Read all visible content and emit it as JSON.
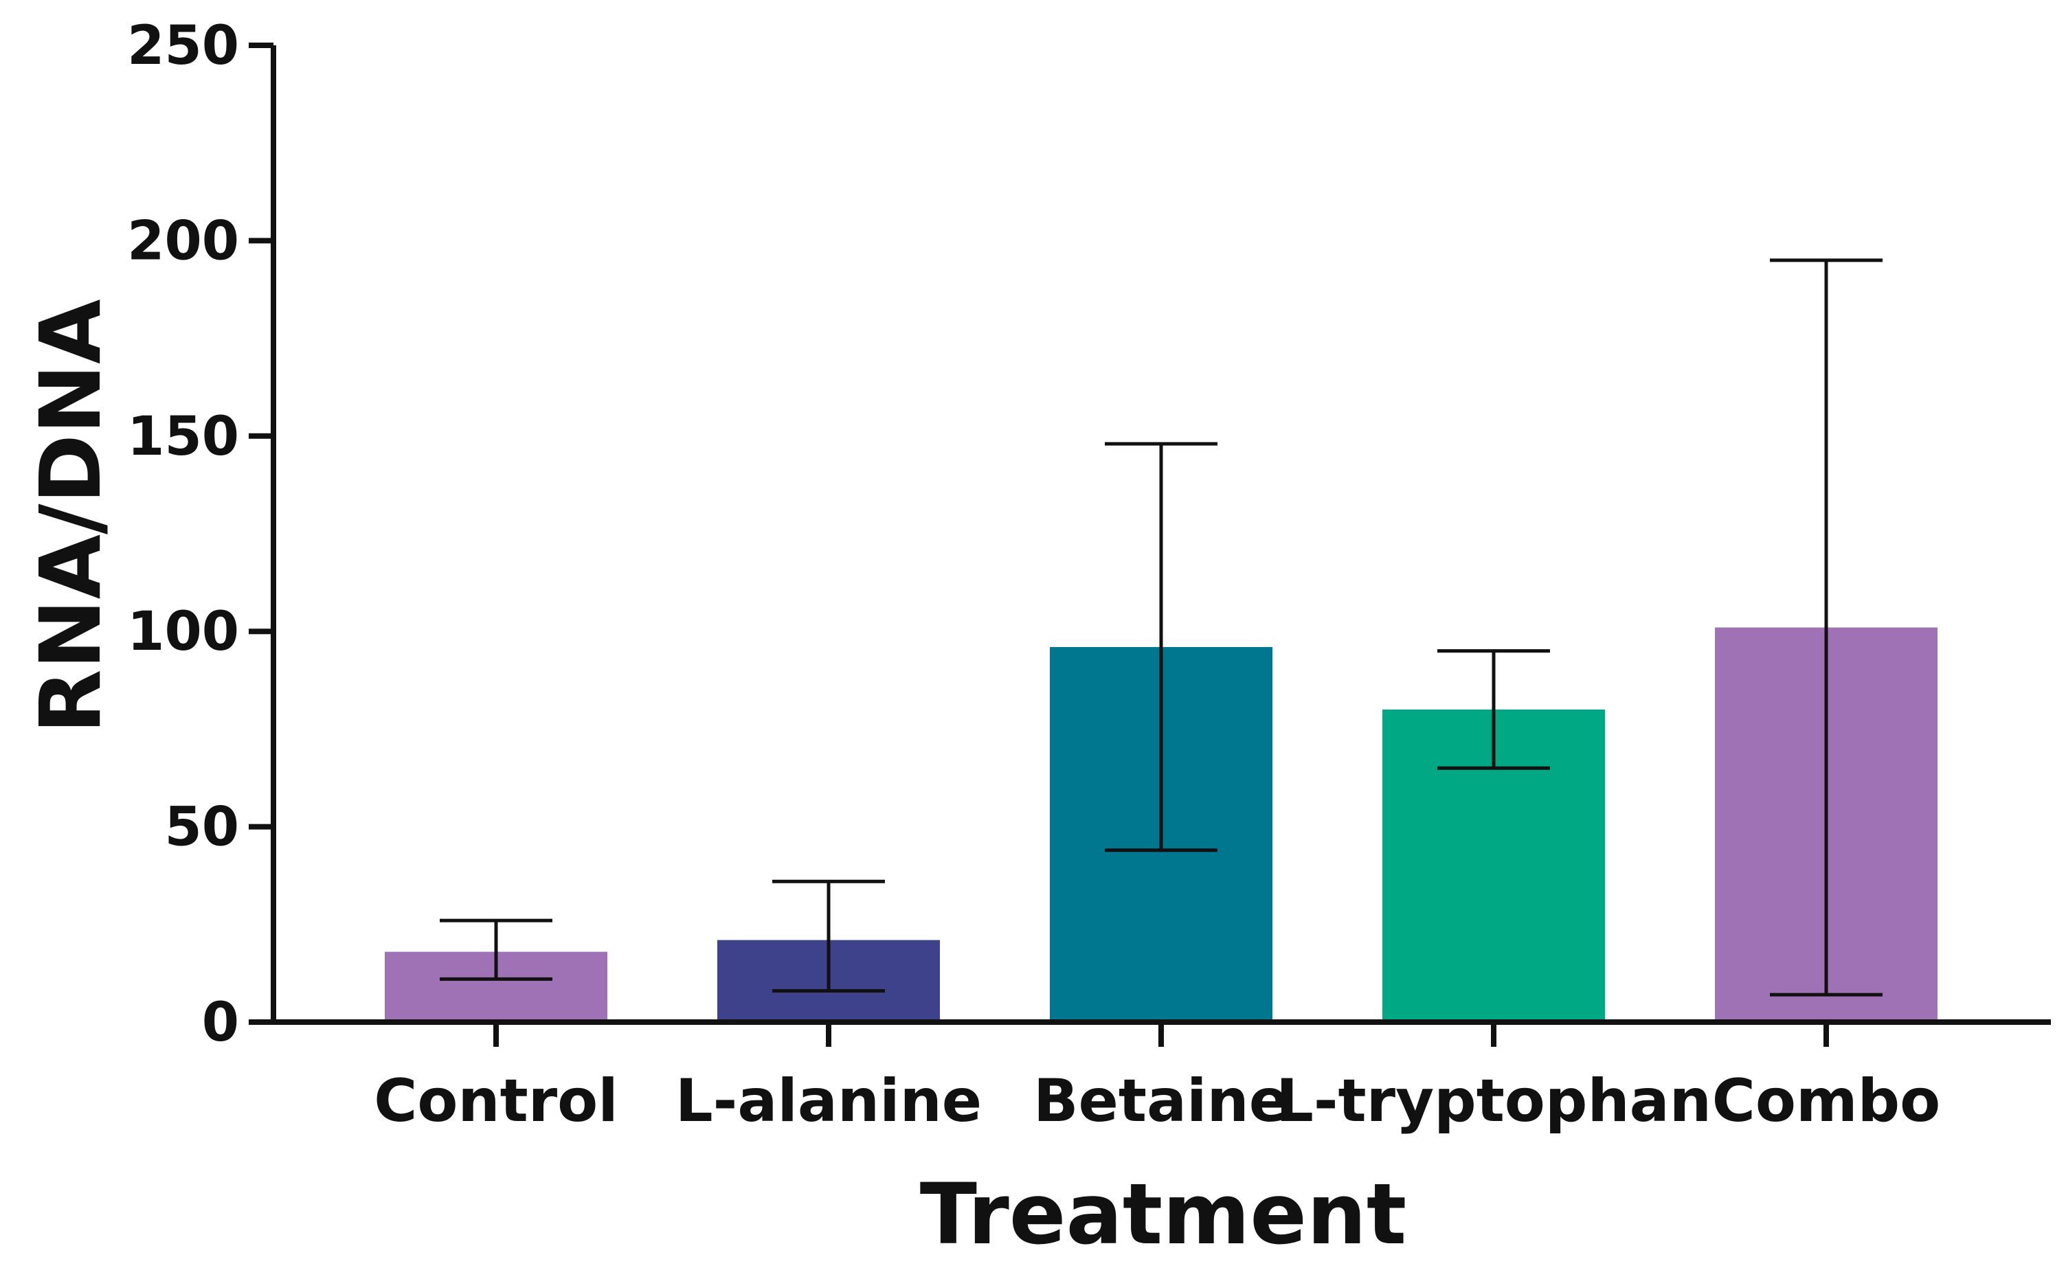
{
  "chart_data": {
    "type": "bar",
    "xlabel": "Treatment",
    "ylabel": "RNA/DNA",
    "ylim": [
      0,
      250
    ],
    "yticks": [
      0,
      50,
      100,
      150,
      200,
      250
    ],
    "categories": [
      "Control",
      "L-alanine",
      "Betaine",
      "L-tryptophan",
      "Combo"
    ],
    "values": [
      18,
      21,
      96,
      80,
      101
    ],
    "error_low": [
      11,
      8,
      44,
      65,
      7
    ],
    "error_high": [
      26,
      36,
      148,
      95,
      195
    ],
    "colors": [
      "#9E72B4",
      "#3D428A",
      "#00778F",
      "#00A884",
      "#9E72B4"
    ],
    "grid": false,
    "legend": "none"
  }
}
